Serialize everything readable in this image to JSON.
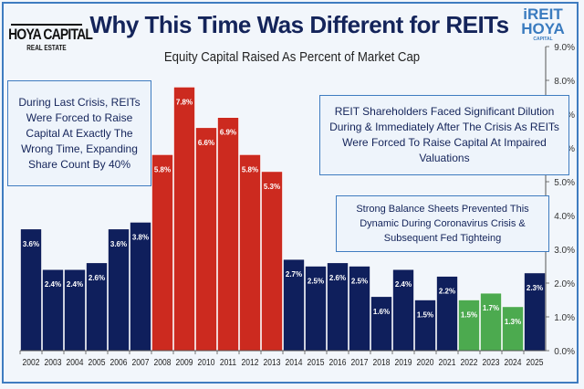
{
  "header": {
    "logo_line1": "HOYA CAPITAL",
    "logo_line2": "REAL ESTATE",
    "brand_line1": "iREIT",
    "brand_line2": "HOYA",
    "brand_line3": "CAPITAL"
  },
  "annotations": [
    "During Last Crisis, REITs Were Forced to Raise Capital At Exactly The Wrong Time, Expanding Share Count By 40%",
    "REIT Shareholders Faced Significant Dilution During & Immediately After The Crisis As REITs Were Forced To Raise Capital At Impaired Valuations",
    "Strong Balance Sheets Prevented This Dynamic During Coronavirus Crisis & Subsequent Fed Tighteing"
  ],
  "chart_data": {
    "type": "bar",
    "title": "Why This Time Was Different for REITs",
    "subtitle": "Equity Capital Raised As Percent of Market Cap",
    "categories": [
      "2002",
      "2003",
      "2004",
      "2005",
      "2006",
      "2007",
      "2008",
      "2009",
      "2010",
      "2011",
      "2012",
      "2013",
      "2014",
      "2015",
      "2016",
      "2017",
      "2018",
      "2019",
      "2020",
      "2021",
      "2022",
      "2023",
      "2024",
      "2025"
    ],
    "values": [
      3.6,
      2.4,
      2.4,
      2.6,
      3.6,
      3.8,
      5.8,
      7.8,
      6.6,
      6.9,
      5.8,
      5.3,
      2.7,
      2.5,
      2.6,
      2.5,
      1.6,
      2.4,
      1.5,
      2.2,
      1.5,
      1.7,
      1.3,
      2.3
    ],
    "data_labels": [
      "3.6%",
      "2.4%",
      "2.4%",
      "2.6%",
      "3.6%",
      "3.8%",
      "5.8%",
      "7.8%",
      "6.6%",
      "6.9%",
      "5.8%",
      "5.3%",
      "2.7%",
      "2.5%",
      "2.6%",
      "2.5%",
      "1.6%",
      "2.4%",
      "1.5%",
      "2.2%",
      "1.5%",
      "1.7%",
      "1.3%",
      "2.3%"
    ],
    "bar_colors": [
      "#0f1f5c",
      "#0f1f5c",
      "#0f1f5c",
      "#0f1f5c",
      "#0f1f5c",
      "#0f1f5c",
      "#cc2a1f",
      "#cc2a1f",
      "#cc2a1f",
      "#cc2a1f",
      "#cc2a1f",
      "#cc2a1f",
      "#0f1f5c",
      "#0f1f5c",
      "#0f1f5c",
      "#0f1f5c",
      "#0f1f5c",
      "#0f1f5c",
      "#0f1f5c",
      "#0f1f5c",
      "#4caa4f",
      "#4caa4f",
      "#4caa4f",
      "#0f1f5c"
    ],
    "ylim": [
      0,
      9
    ],
    "yticks": [
      "0.0%",
      "1.0%",
      "2.0%",
      "3.0%",
      "4.0%",
      "5.0%",
      "6.0%",
      "7.0%",
      "8.0%",
      "9.0%"
    ],
    "y_axis_side": "right",
    "grid": false,
    "xlabel": "",
    "ylabel": ""
  }
}
